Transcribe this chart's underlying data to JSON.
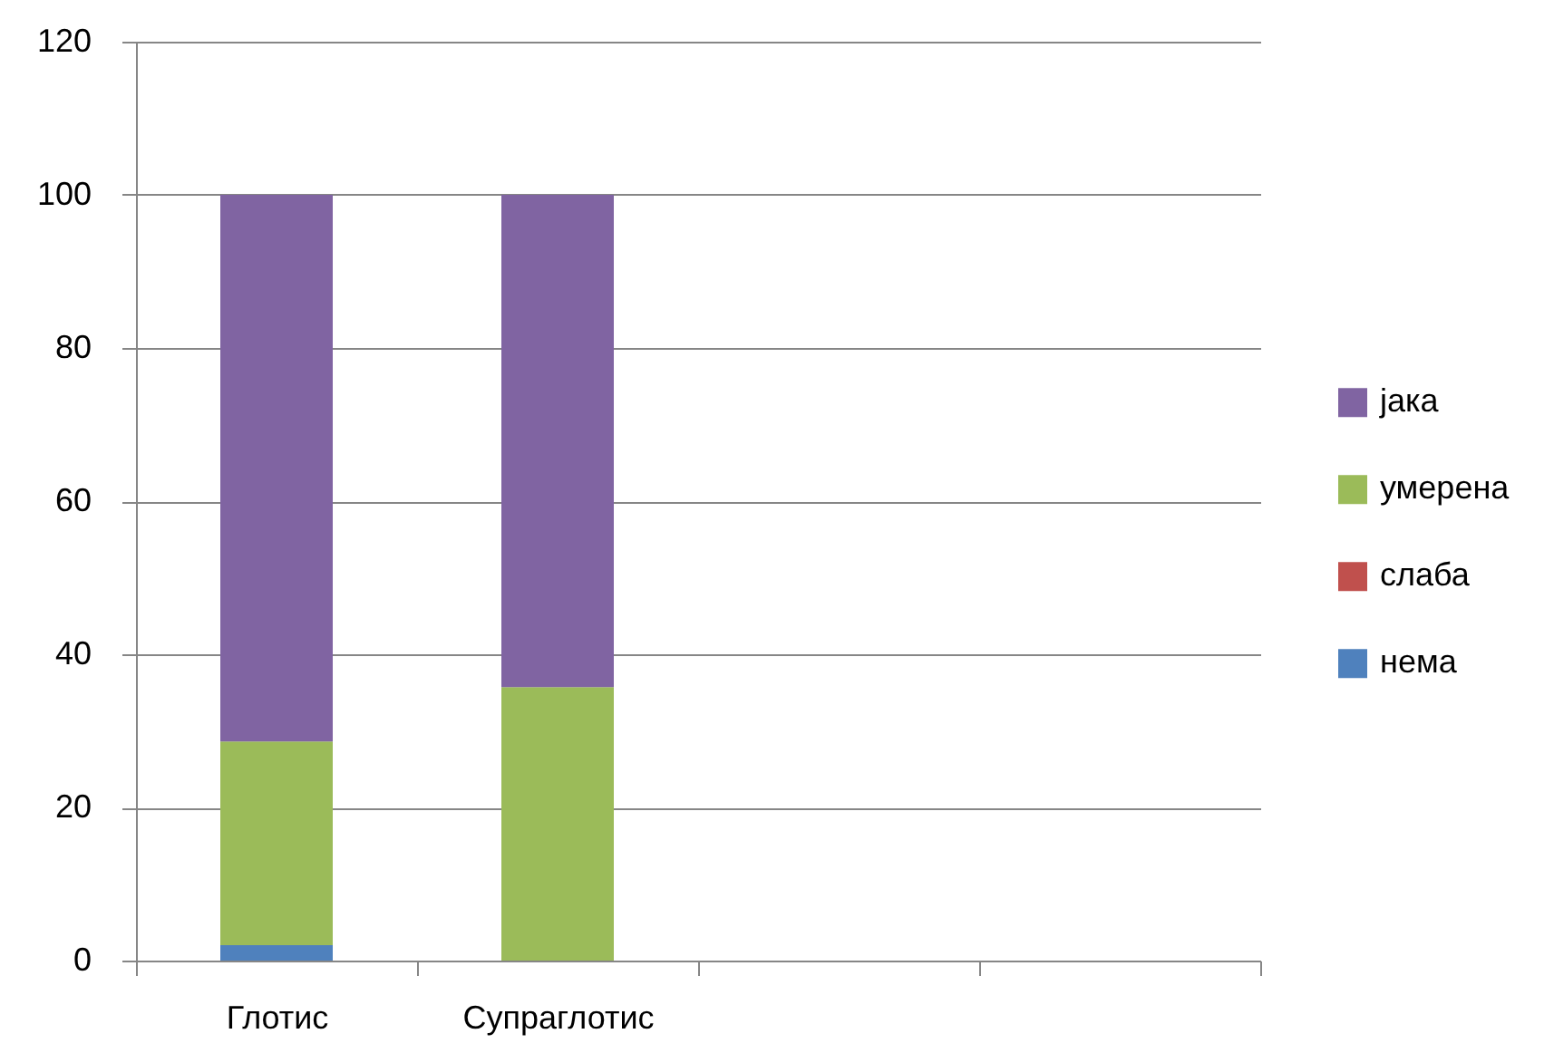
{
  "chart_data": {
    "type": "bar",
    "stacked": true,
    "categories": [
      "Глотис",
      "Супраглотис",
      null,
      null
    ],
    "series": [
      {
        "name": "нема",
        "color": "#4f81bd",
        "values": [
          2.0,
          0,
          null,
          null
        ]
      },
      {
        "name": "слаба",
        "color": "#c0504d",
        "values": [
          0,
          0,
          null,
          null
        ]
      },
      {
        "name": "умерена",
        "color": "#9bbb59",
        "values": [
          26.6,
          35.7,
          null,
          null
        ]
      },
      {
        "name": "јака",
        "color": "#8064a2",
        "values": [
          71.4,
          64.3,
          null,
          null
        ]
      }
    ],
    "ylim": [
      0,
      120
    ],
    "yticks": [
      0,
      20,
      40,
      60,
      80,
      100,
      120
    ],
    "grid": "y",
    "legend": "right"
  }
}
